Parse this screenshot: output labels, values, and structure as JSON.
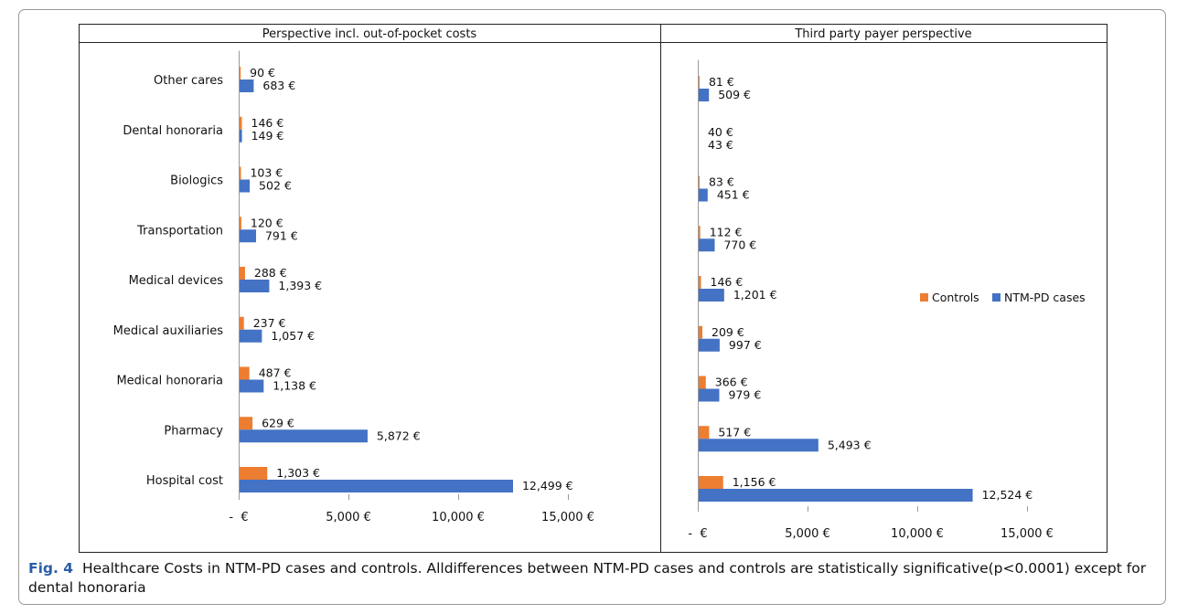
{
  "figure": {
    "label": "Fig. 4",
    "caption": "Healthcare Costs in NTM-PD cases and controls. Alldifferences between NTM-PD cases and controls are statistically significative(p<0.0001) except for dental honoraria"
  },
  "legend": {
    "items": [
      {
        "name": "Controls",
        "color": "#ed7d31"
      },
      {
        "name": "NTM-PD cases",
        "color": "#4472c4"
      }
    ]
  },
  "chart_data": [
    {
      "type": "bar",
      "orientation": "horizontal",
      "title": "Perspective incl. out-of-pocket costs",
      "categories": [
        "Other cares",
        "Dental honoraria",
        "Biologics",
        "Transportation",
        "Medical devices",
        "Medical auxiliaries",
        "Medical honoraria",
        "Pharmacy",
        "Hospital cost"
      ],
      "series": [
        {
          "name": "Controls",
          "color": "#ed7d31",
          "values": [
            90,
            146,
            103,
            120,
            288,
            237,
            487,
            629,
            1303
          ],
          "labels": [
            "90 €",
            "146 €",
            "103 €",
            "120 €",
            "288 €",
            "237 €",
            "487 €",
            "629 €",
            "1,303 €"
          ]
        },
        {
          "name": "NTM-PD cases",
          "color": "#4472c4",
          "values": [
            683,
            149,
            502,
            791,
            1393,
            1057,
            1138,
            5872,
            12499
          ],
          "labels": [
            "683 €",
            "149 €",
            "502 €",
            "791 €",
            "1,393 €",
            "1,057 €",
            "1,138 €",
            "5,872 €",
            "12,499 €"
          ]
        }
      ],
      "xlim": [
        0,
        15000
      ],
      "xticks": [
        0,
        5000,
        10000,
        15000
      ],
      "xtick_labels": [
        "-  €",
        "5,000 €",
        "10,000 €",
        "15,000 €"
      ],
      "grid": false
    },
    {
      "type": "bar",
      "orientation": "horizontal",
      "title": "Third party payer perspective",
      "categories": [
        "",
        "",
        "",
        "",
        "",
        "",
        "",
        "",
        ""
      ],
      "series": [
        {
          "name": "Controls",
          "color": "#ed7d31",
          "values": [
            81,
            40,
            83,
            112,
            146,
            209,
            366,
            517,
            1156
          ],
          "labels": [
            "81 €",
            "40 €",
            "83 €",
            "112 €",
            "146 €",
            "209 €",
            "366 €",
            "517 €",
            "1,156 €"
          ]
        },
        {
          "name": "NTM-PD cases",
          "color": "#4472c4",
          "values": [
            509,
            43,
            451,
            770,
            1201,
            997,
            979,
            5493,
            12524
          ],
          "labels": [
            "509 €",
            "43 €",
            "451 €",
            "770 €",
            "1,201 €",
            "997 €",
            "979 €",
            "5,493 €",
            "12,524 €"
          ]
        }
      ],
      "xlim": [
        0,
        15000
      ],
      "xticks": [
        0,
        5000,
        10000,
        15000
      ],
      "xtick_labels": [
        "-  €",
        "5,000 €",
        "10,000 €",
        "15,000 €"
      ],
      "legend_position": "right",
      "grid": false
    }
  ]
}
